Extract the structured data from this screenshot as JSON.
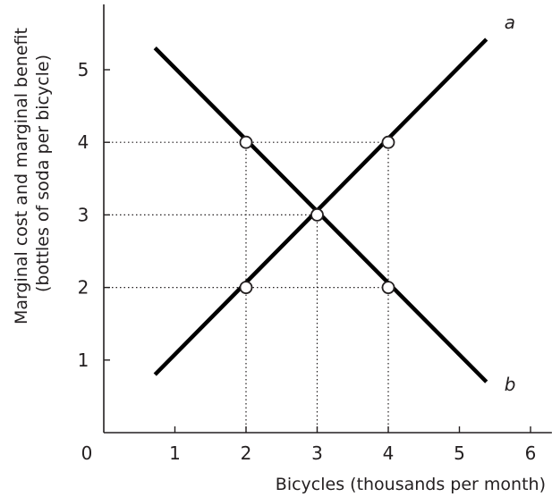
{
  "chart_data": {
    "type": "line",
    "xlabel": "Bicycles (thousands per month)",
    "ylabel_lines": [
      "Marginal cost and marginal benefit",
      "(bottles of soda per bicycle)"
    ],
    "xlim": [
      0,
      6.3
    ],
    "ylim": [
      0,
      5.9
    ],
    "x_ticks": [
      0,
      1,
      2,
      3,
      4,
      5,
      6
    ],
    "y_ticks": [
      1,
      2,
      3,
      4,
      5
    ],
    "grid": false,
    "series": [
      {
        "name": "a",
        "x": [
          0.72,
          5.38
        ],
        "y": [
          0.8,
          5.42
        ],
        "color": "#000000"
      },
      {
        "name": "b",
        "x": [
          0.72,
          5.38
        ],
        "y": [
          5.3,
          0.7
        ],
        "color": "#000000"
      }
    ],
    "points": [
      {
        "x": 2,
        "y": 4
      },
      {
        "x": 4,
        "y": 4
      },
      {
        "x": 3,
        "y": 3
      },
      {
        "x": 2,
        "y": 2
      },
      {
        "x": 4,
        "y": 2
      }
    ],
    "guide_lines": [
      {
        "from": [
          0,
          4
        ],
        "to": [
          4,
          4
        ]
      },
      {
        "from": [
          0,
          3
        ],
        "to": [
          3,
          3
        ]
      },
      {
        "from": [
          0,
          2
        ],
        "to": [
          4,
          2
        ]
      },
      {
        "from": [
          2,
          0
        ],
        "to": [
          2,
          4
        ]
      },
      {
        "from": [
          3,
          0
        ],
        "to": [
          3,
          3
        ]
      },
      {
        "from": [
          4,
          0
        ],
        "to": [
          4,
          4
        ]
      }
    ]
  }
}
